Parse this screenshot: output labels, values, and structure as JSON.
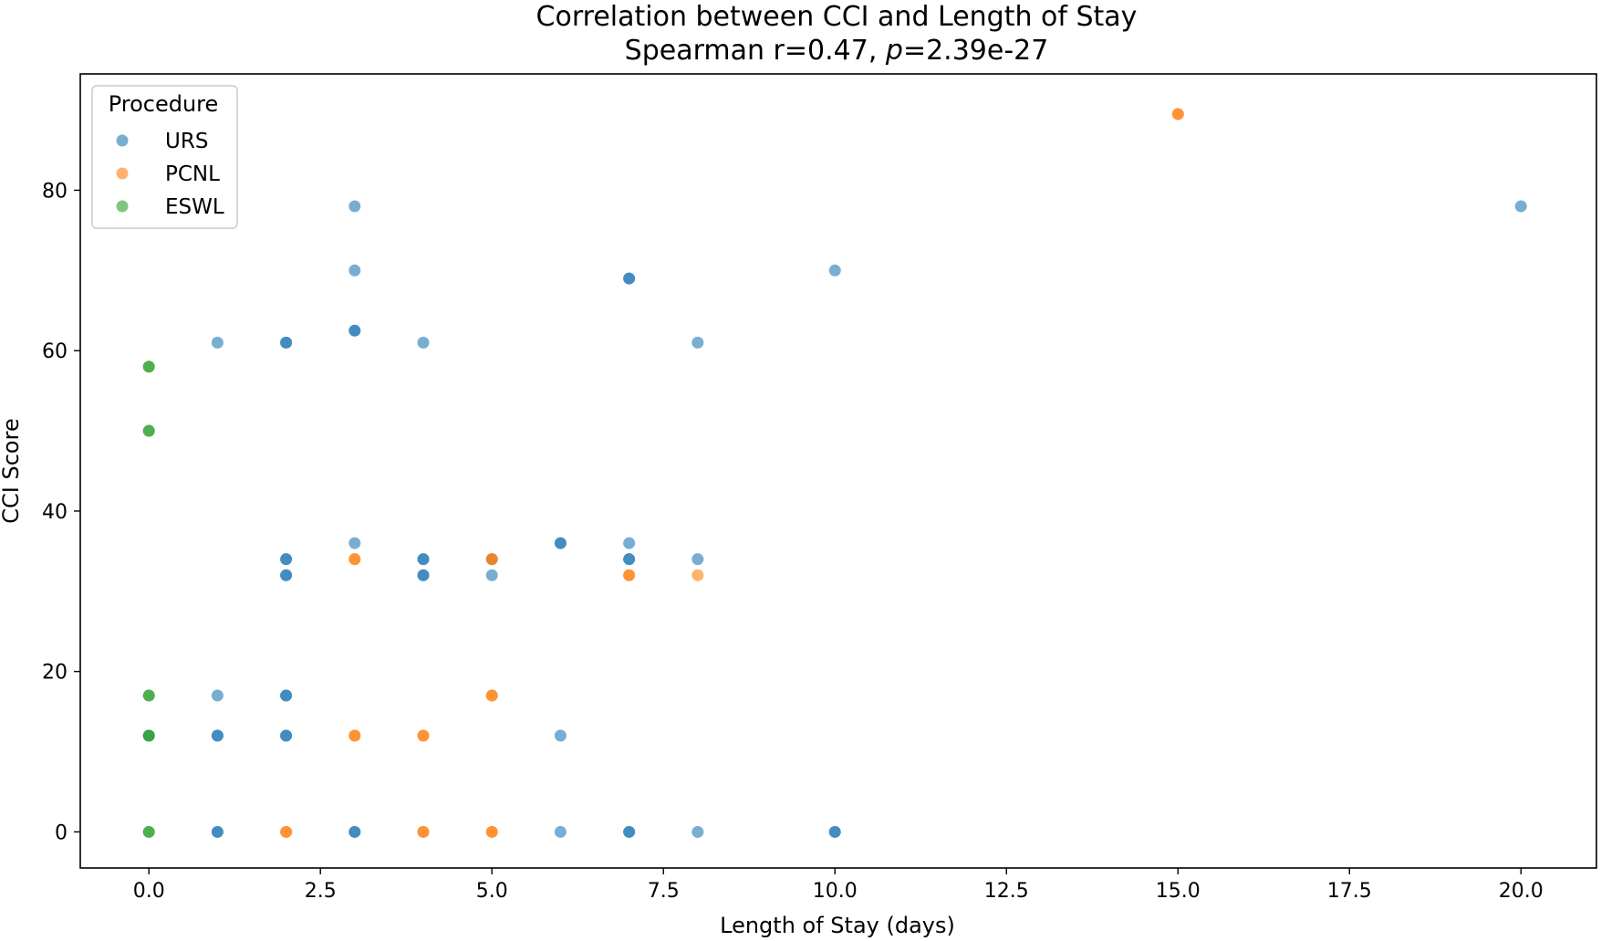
{
  "chart_data": {
    "type": "scatter",
    "title": "Correlation between CCI and Length of Stay",
    "subtitle_prefix": "Spearman r=0.47, ",
    "subtitle_p_symbol": "p",
    "subtitle_suffix": "=2.39e-27",
    "xlabel": "Length of Stay (days)",
    "ylabel": "CCI Score",
    "xlim": [
      -1,
      21.1
    ],
    "ylim": [
      -4.5,
      94.5
    ],
    "xticks": [
      0,
      2.5,
      5,
      7.5,
      10,
      12.5,
      15,
      17.5,
      20
    ],
    "xtick_labels": [
      "0.0",
      "2.5",
      "5.0",
      "7.5",
      "10.0",
      "12.5",
      "15.0",
      "17.5",
      "20.0"
    ],
    "yticks": [
      0,
      20,
      40,
      60,
      80
    ],
    "ytick_labels": [
      "0",
      "20",
      "40",
      "60",
      "80"
    ],
    "grid": false,
    "legend_position": "top-left",
    "legend_title": "Procedure",
    "series": [
      {
        "name": "URS",
        "color": "#1f77b4",
        "alpha": 0.6,
        "points": [
          [
            20,
            78
          ],
          [
            3,
            78
          ],
          [
            3,
            70
          ],
          [
            10,
            70
          ],
          [
            7,
            69
          ],
          [
            7,
            69
          ],
          [
            3,
            62.5
          ],
          [
            3,
            62.5
          ],
          [
            1,
            61
          ],
          [
            2,
            61
          ],
          [
            2,
            61
          ],
          [
            4,
            61
          ],
          [
            8,
            61
          ],
          [
            3,
            36
          ],
          [
            6,
            36
          ],
          [
            6,
            36
          ],
          [
            7,
            36
          ],
          [
            2,
            34
          ],
          [
            2,
            34
          ],
          [
            4,
            34
          ],
          [
            4,
            34
          ],
          [
            5,
            34
          ],
          [
            7,
            34
          ],
          [
            7,
            34
          ],
          [
            8,
            34
          ],
          [
            2,
            32
          ],
          [
            2,
            32
          ],
          [
            4,
            32
          ],
          [
            4,
            32
          ],
          [
            5,
            32
          ],
          [
            1,
            17
          ],
          [
            2,
            17
          ],
          [
            2,
            17
          ],
          [
            1,
            12
          ],
          [
            1,
            12
          ],
          [
            2,
            12
          ],
          [
            2,
            12
          ],
          [
            6,
            12
          ],
          [
            0,
            12
          ],
          [
            1,
            0
          ],
          [
            1,
            0
          ],
          [
            3,
            0
          ],
          [
            3,
            0
          ],
          [
            6,
            0
          ],
          [
            7,
            0
          ],
          [
            7,
            0
          ],
          [
            8,
            0
          ],
          [
            10,
            0
          ],
          [
            10,
            0
          ]
        ]
      },
      {
        "name": "PCNL",
        "color": "#ff7f0e",
        "alpha": 0.6,
        "points": [
          [
            15,
            89.5
          ],
          [
            15,
            89.5
          ],
          [
            3,
            34
          ],
          [
            3,
            34
          ],
          [
            5,
            34
          ],
          [
            5,
            34
          ],
          [
            7,
            32
          ],
          [
            7,
            32
          ],
          [
            8,
            32
          ],
          [
            5,
            17
          ],
          [
            5,
            17
          ],
          [
            3,
            12
          ],
          [
            3,
            12
          ],
          [
            4,
            12
          ],
          [
            4,
            12
          ],
          [
            2,
            0
          ],
          [
            2,
            0
          ],
          [
            4,
            0
          ],
          [
            4,
            0
          ],
          [
            5,
            0
          ],
          [
            5,
            0
          ]
        ]
      },
      {
        "name": "ESWL",
        "color": "#2ca02c",
        "alpha": 0.6,
        "points": [
          [
            0,
            58
          ],
          [
            0,
            58
          ],
          [
            0,
            50
          ],
          [
            0,
            50
          ],
          [
            0,
            17
          ],
          [
            0,
            17
          ],
          [
            0,
            12
          ],
          [
            0,
            12
          ],
          [
            0,
            0
          ],
          [
            0,
            0
          ]
        ]
      }
    ]
  }
}
